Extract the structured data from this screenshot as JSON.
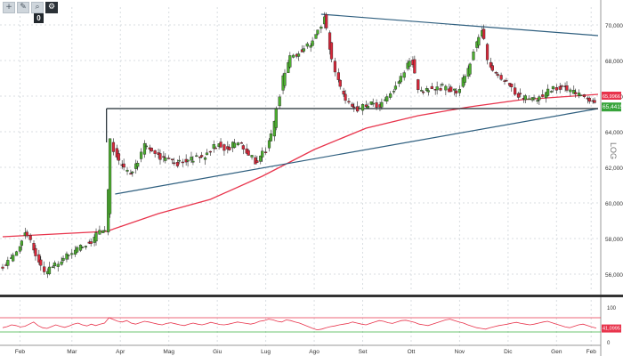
{
  "toolbar": {
    "buttons": [
      {
        "icon": "plus-icon",
        "glyph": "+"
      },
      {
        "icon": "pencil-icon",
        "glyph": "✎"
      },
      {
        "icon": "magnify-icon",
        "glyph": "⌕"
      },
      {
        "icon": "gear-icon",
        "glyph": "⚙"
      }
    ],
    "badge": "0"
  },
  "colors": {
    "up_candle": "#4caf2f",
    "down_candle": "#d8283a",
    "wick": "#222222",
    "moving_average": "#e8344c",
    "trendline": "#2f5f7f",
    "support_line": "#1f2a30",
    "rsi_line": "#e8344c",
    "rsi_upper": "#e8344c",
    "rsi_lower": "#3cb043",
    "separator": "#333333",
    "grid": "#d9dde1",
    "price_tag": "#37a33a",
    "ma_tag": "#e8344c"
  },
  "chart_data": [
    {
      "type": "candlestick",
      "title": "",
      "x_labels": [
        "Feb",
        "Mar",
        "Apr",
        "Mag",
        "Giu",
        "Lug",
        "Ago",
        "Set",
        "Ott",
        "Nov",
        "Dic",
        "Gen",
        "Feb"
      ],
      "ylim": [
        55,
        71
      ],
      "y_ticks": [
        "56,0000",
        "58,0000",
        "60,0000",
        "62,0000",
        "64,0000",
        "66,0000",
        "68,0000",
        "70,0000"
      ],
      "last_price_label": "65,4415",
      "ma_label": "65,9966",
      "side_label": "LOG",
      "grid": true,
      "anchor_closes": [
        [
          0,
          56.5
        ],
        [
          8,
          57.2
        ],
        [
          13,
          58.5
        ],
        [
          18,
          57.3
        ],
        [
          24,
          56.0
        ],
        [
          28,
          56.3
        ],
        [
          34,
          56.8
        ],
        [
          40,
          57.2
        ],
        [
          46,
          57.6
        ],
        [
          52,
          57.9
        ],
        [
          55,
          58.5
        ],
        [
          60,
          58.3
        ],
        [
          62,
          63.5
        ],
        [
          67,
          62.3
        ],
        [
          74,
          61.5
        ],
        [
          82,
          63.2
        ],
        [
          90,
          62.6
        ],
        [
          100,
          62.2
        ],
        [
          108,
          62.4
        ],
        [
          116,
          62.6
        ],
        [
          124,
          63.3
        ],
        [
          130,
          63.0
        ],
        [
          136,
          63.5
        ],
        [
          140,
          63.0
        ],
        [
          146,
          62.3
        ],
        [
          152,
          63.0
        ],
        [
          156,
          64.0
        ],
        [
          158,
          65.2
        ],
        [
          162,
          67.0
        ],
        [
          166,
          68.2
        ],
        [
          172,
          68.5
        ],
        [
          178,
          69.0
        ],
        [
          183,
          69.8
        ],
        [
          186,
          70.6
        ],
        [
          189,
          68.5
        ],
        [
          193,
          67.0
        ],
        [
          197,
          66.0
        ],
        [
          201,
          65.5
        ],
        [
          205,
          65.2
        ],
        [
          212,
          65.6
        ],
        [
          218,
          65.5
        ],
        [
          223,
          66.0
        ],
        [
          230,
          67.0
        ],
        [
          236,
          68.2
        ],
        [
          240,
          66.3
        ],
        [
          246,
          66.4
        ],
        [
          254,
          66.5
        ],
        [
          262,
          66.2
        ],
        [
          268,
          67.2
        ],
        [
          273,
          68.8
        ],
        [
          277,
          69.8
        ],
        [
          280,
          68.0
        ],
        [
          285,
          67.2
        ],
        [
          292,
          66.8
        ],
        [
          298,
          66.0
        ],
        [
          305,
          65.8
        ],
        [
          312,
          66.0
        ],
        [
          317,
          66.4
        ],
        [
          324,
          66.5
        ],
        [
          330,
          66.2
        ],
        [
          336,
          65.9
        ],
        [
          341,
          65.8
        ],
        [
          344,
          65.5
        ]
      ],
      "series": [
        {
          "kind": "moving-average",
          "points": [
            [
              0,
              58.1
            ],
            [
              60,
              58.4
            ],
            [
              90,
              59.4
            ],
            [
              120,
              60.2
            ],
            [
              150,
              61.5
            ],
            [
              180,
              63.0
            ],
            [
              210,
              64.2
            ],
            [
              240,
              64.9
            ],
            [
              270,
              65.4
            ],
            [
              300,
              65.8
            ],
            [
              344,
              66.1
            ]
          ]
        }
      ],
      "trendlines": [
        {
          "kind": "ascending",
          "from": [
            65,
            60.5
          ],
          "to": [
            344,
            65.3
          ]
        },
        {
          "kind": "descending",
          "from": [
            184,
            70.6
          ],
          "to": [
            344,
            69.4
          ]
        },
        {
          "kind": "horizontal",
          "from": [
            60,
            65.3
          ],
          "to": [
            344,
            65.3
          ]
        }
      ]
    },
    {
      "type": "line",
      "title": "",
      "ylim": [
        0,
        100
      ],
      "y_ticks": [
        "100",
        "0"
      ],
      "last_value_label": "41,0995",
      "upper_band": 70,
      "lower_band": 30,
      "values": [
        42,
        45,
        50,
        48,
        44,
        46,
        52,
        58,
        48,
        42,
        40,
        45,
        50,
        46,
        43,
        47,
        52,
        55,
        50,
        47,
        52,
        48,
        52,
        55,
        70,
        65,
        60,
        58,
        62,
        55,
        52,
        56,
        60,
        58,
        55,
        52,
        50,
        54,
        56,
        53,
        50,
        48,
        52,
        55,
        52,
        50,
        53,
        57,
        54,
        51,
        50,
        52,
        55,
        58,
        56,
        54,
        52,
        55,
        60,
        62,
        66,
        64,
        60,
        58,
        64,
        62,
        58,
        55,
        50,
        45,
        40,
        36,
        38,
        42,
        45,
        47,
        50,
        52,
        54,
        58,
        55,
        52,
        50,
        54,
        58,
        62,
        60,
        56,
        54,
        58,
        62,
        63,
        60,
        57,
        52,
        50,
        48,
        52,
        56,
        60,
        64,
        66,
        62,
        58,
        55,
        50,
        46,
        42,
        40,
        38,
        42,
        45,
        48,
        50,
        52,
        55,
        57,
        54,
        52,
        50,
        52,
        55,
        58,
        60,
        56,
        52,
        48,
        44,
        42,
        46,
        50,
        52,
        48,
        44,
        41
      ]
    }
  ]
}
